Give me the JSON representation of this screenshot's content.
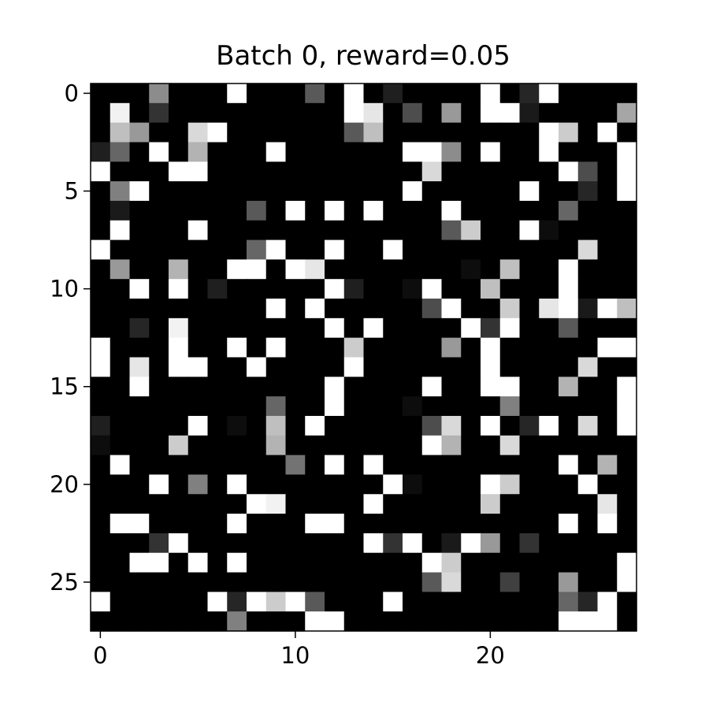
{
  "chart_data": {
    "type": "heatmap",
    "title": "Batch 0, reward=0.05",
    "xlabel": "",
    "ylabel": "",
    "colormap": "gray",
    "value_range": [
      0,
      1
    ],
    "grid": false,
    "x_range": [
      -0.5,
      27.5
    ],
    "y_range": [
      -0.5,
      27.5
    ],
    "x_ticks": [
      0,
      10,
      20
    ],
    "y_ticks": [
      0,
      5,
      10,
      15,
      20,
      25
    ],
    "x_tick_labels": [
      "0",
      "10",
      "20"
    ],
    "y_tick_labels": [
      "0",
      "5",
      "10",
      "15",
      "20",
      "25"
    ],
    "rows": [
      [
        0,
        0,
        0,
        0.55,
        0,
        0,
        0,
        1,
        0,
        0,
        0,
        0.35,
        0,
        1,
        0,
        0.12,
        0,
        0,
        0,
        0,
        1,
        0,
        0.15,
        1,
        0,
        0,
        0,
        0
      ],
      [
        0,
        0.95,
        0,
        0.2,
        0,
        0,
        0,
        0,
        0,
        0,
        0,
        0,
        0,
        1,
        0.9,
        0,
        0.3,
        0,
        0.6,
        0,
        1,
        1,
        0.1,
        0,
        0,
        0,
        0,
        0.65
      ],
      [
        0,
        0.75,
        0.6,
        0,
        0,
        0.85,
        1,
        0,
        0,
        0,
        0,
        0,
        0,
        0.35,
        0.75,
        0,
        0,
        0,
        0,
        0,
        0,
        0,
        0,
        1,
        0.8,
        0,
        1,
        0
      ],
      [
        0.12,
        0.4,
        0,
        1,
        0,
        0.7,
        0,
        0,
        0,
        1,
        0,
        0,
        0,
        0,
        0,
        0,
        1,
        1,
        0.55,
        0,
        1,
        0,
        0,
        1,
        0,
        0,
        0,
        1
      ],
      [
        1,
        0,
        0,
        0,
        1,
        1,
        0,
        0,
        0,
        0,
        0,
        0,
        0,
        0,
        0,
        0,
        0,
        0.85,
        0,
        0,
        0,
        0,
        0,
        0,
        1,
        0.3,
        0,
        1
      ],
      [
        0,
        0.5,
        1,
        0,
        0,
        0,
        0,
        0,
        0,
        0,
        0,
        0,
        0,
        0,
        0,
        0,
        1,
        0,
        0,
        0,
        0,
        0,
        1,
        0,
        0,
        0.15,
        0,
        1
      ],
      [
        0,
        0.1,
        0,
        0,
        0,
        0,
        0,
        0,
        0.35,
        0,
        1,
        0,
        1,
        0,
        1,
        0,
        0,
        0,
        1,
        0,
        0,
        0,
        0,
        0,
        0.4,
        0,
        0,
        0
      ],
      [
        0,
        1,
        0,
        0,
        0,
        1,
        0,
        0,
        0,
        0,
        0,
        0,
        0,
        0,
        0,
        0,
        0,
        0,
        0.35,
        0.8,
        0,
        0,
        1,
        0.05,
        0,
        0,
        0,
        0
      ],
      [
        1,
        0,
        0,
        0,
        0,
        0,
        0,
        0,
        0.4,
        1,
        0,
        0,
        1,
        0,
        0,
        1,
        0,
        0,
        0,
        0,
        0,
        0,
        0,
        0,
        0,
        0.85,
        0,
        0
      ],
      [
        0,
        0.6,
        0,
        0,
        0.7,
        0,
        0,
        1,
        1,
        0,
        1,
        0.9,
        0,
        0,
        0,
        0,
        0,
        0,
        0,
        0.05,
        0,
        0.75,
        0,
        0,
        1,
        0,
        0,
        0
      ],
      [
        0,
        0,
        1,
        0,
        1,
        0,
        0.12,
        0,
        0,
        0,
        0,
        0,
        1,
        0.12,
        0,
        0,
        0.05,
        1,
        0,
        0,
        0.75,
        0,
        0,
        0,
        1,
        0,
        0,
        0
      ],
      [
        0,
        0,
        0,
        0,
        0,
        0,
        0,
        0,
        0,
        1,
        0,
        1,
        0,
        0,
        0,
        0,
        0,
        0.3,
        1,
        0,
        0,
        0.8,
        0,
        0.9,
        1,
        0.1,
        1,
        0.75
      ],
      [
        0,
        0,
        0.15,
        0,
        0.95,
        0,
        0,
        0,
        0,
        0,
        0,
        0,
        1,
        0,
        1,
        0,
        0,
        0,
        0,
        1,
        0.2,
        1,
        0,
        0,
        0.35,
        0,
        0,
        0
      ],
      [
        1,
        0,
        0,
        0,
        1,
        0,
        0,
        1,
        0,
        1,
        0,
        0,
        0,
        0.8,
        0,
        0,
        0,
        0,
        0.6,
        0,
        1,
        0,
        0,
        0,
        0,
        0,
        1,
        1
      ],
      [
        1,
        0,
        0.9,
        0,
        1,
        1,
        0,
        0,
        1,
        0,
        0,
        0,
        0,
        1,
        0,
        0,
        0,
        0,
        0,
        0,
        1,
        0,
        0,
        0,
        0,
        0.85,
        0,
        0
      ],
      [
        0,
        0,
        1,
        0,
        0,
        0,
        0,
        0,
        0,
        0,
        0,
        0,
        1,
        0,
        0,
        0,
        0,
        1,
        0,
        0,
        1,
        1,
        0,
        0,
        0.7,
        0,
        0,
        1
      ],
      [
        0,
        0,
        0,
        0,
        0,
        0,
        0,
        0,
        0,
        0.4,
        0,
        0,
        1,
        0,
        0,
        0,
        0.05,
        0,
        0,
        0,
        0,
        0.5,
        0,
        0,
        0,
        0,
        0,
        1
      ],
      [
        0.12,
        0,
        0,
        0,
        0,
        1,
        0,
        0.05,
        0,
        0.75,
        0,
        1,
        0,
        0,
        0,
        0,
        0,
        0.3,
        0.85,
        0,
        1,
        0,
        0.15,
        1,
        0,
        0.85,
        0,
        1
      ],
      [
        0.05,
        0,
        0,
        0,
        0.8,
        0,
        0,
        0,
        0,
        0.7,
        0,
        0,
        0,
        0,
        0,
        0,
        0,
        1,
        0.7,
        0,
        0,
        0.85,
        0,
        0,
        0,
        0,
        0,
        0
      ],
      [
        0,
        1,
        0,
        0,
        0,
        0,
        0,
        0,
        0,
        0,
        0.45,
        0,
        1,
        0,
        1,
        0,
        0,
        0,
        0,
        0,
        0,
        0,
        0,
        0,
        1,
        0,
        0.7,
        0
      ],
      [
        0,
        0,
        0,
        1,
        0,
        0.5,
        0,
        1,
        0,
        0,
        0,
        0,
        0,
        0,
        0,
        1,
        0.05,
        0,
        0,
        0,
        1,
        0.8,
        0,
        0,
        0,
        1,
        0,
        0
      ],
      [
        0,
        0,
        0,
        0,
        0,
        0,
        0,
        0,
        1,
        0.95,
        0,
        0,
        0,
        0,
        1,
        0,
        0,
        0,
        0,
        0,
        0.8,
        0,
        0,
        0,
        0,
        0,
        0.9,
        0
      ],
      [
        0,
        1,
        1,
        0,
        0,
        0,
        0,
        1,
        0,
        0,
        0,
        1,
        1,
        0,
        0,
        0,
        0,
        0,
        0,
        0,
        0,
        0,
        0,
        0,
        1,
        0,
        1,
        0
      ],
      [
        0,
        0,
        0,
        0.2,
        1,
        0,
        0,
        0,
        0,
        0,
        0,
        0,
        0,
        0,
        1,
        0.2,
        1,
        0,
        0.1,
        1,
        0.6,
        0,
        0.2,
        0,
        0,
        0,
        0,
        0
      ],
      [
        0,
        0,
        1,
        1,
        0,
        1,
        0,
        1,
        0,
        0,
        0,
        0,
        0,
        0,
        0,
        0,
        0,
        1,
        0.8,
        0,
        0,
        0,
        0,
        0,
        0,
        0,
        0,
        1
      ],
      [
        0,
        0,
        0,
        0,
        0,
        0,
        0,
        0,
        0,
        0,
        0,
        0,
        0,
        0,
        0,
        0,
        0,
        0.35,
        0.85,
        0,
        0,
        0.25,
        0,
        0,
        0.6,
        0,
        0,
        1
      ],
      [
        1,
        0,
        0,
        0,
        0,
        0,
        1,
        0.15,
        1,
        0.8,
        1,
        0.35,
        0,
        0,
        0,
        1,
        0,
        0,
        0,
        0,
        0,
        0,
        0,
        0,
        0.4,
        0.15,
        1,
        0
      ],
      [
        0,
        0,
        0,
        0,
        0,
        0,
        0,
        0.5,
        0,
        0,
        0,
        1,
        1,
        0,
        0,
        0,
        0,
        0,
        0,
        0,
        0,
        0,
        0,
        0,
        1,
        1,
        1,
        0
      ]
    ]
  }
}
